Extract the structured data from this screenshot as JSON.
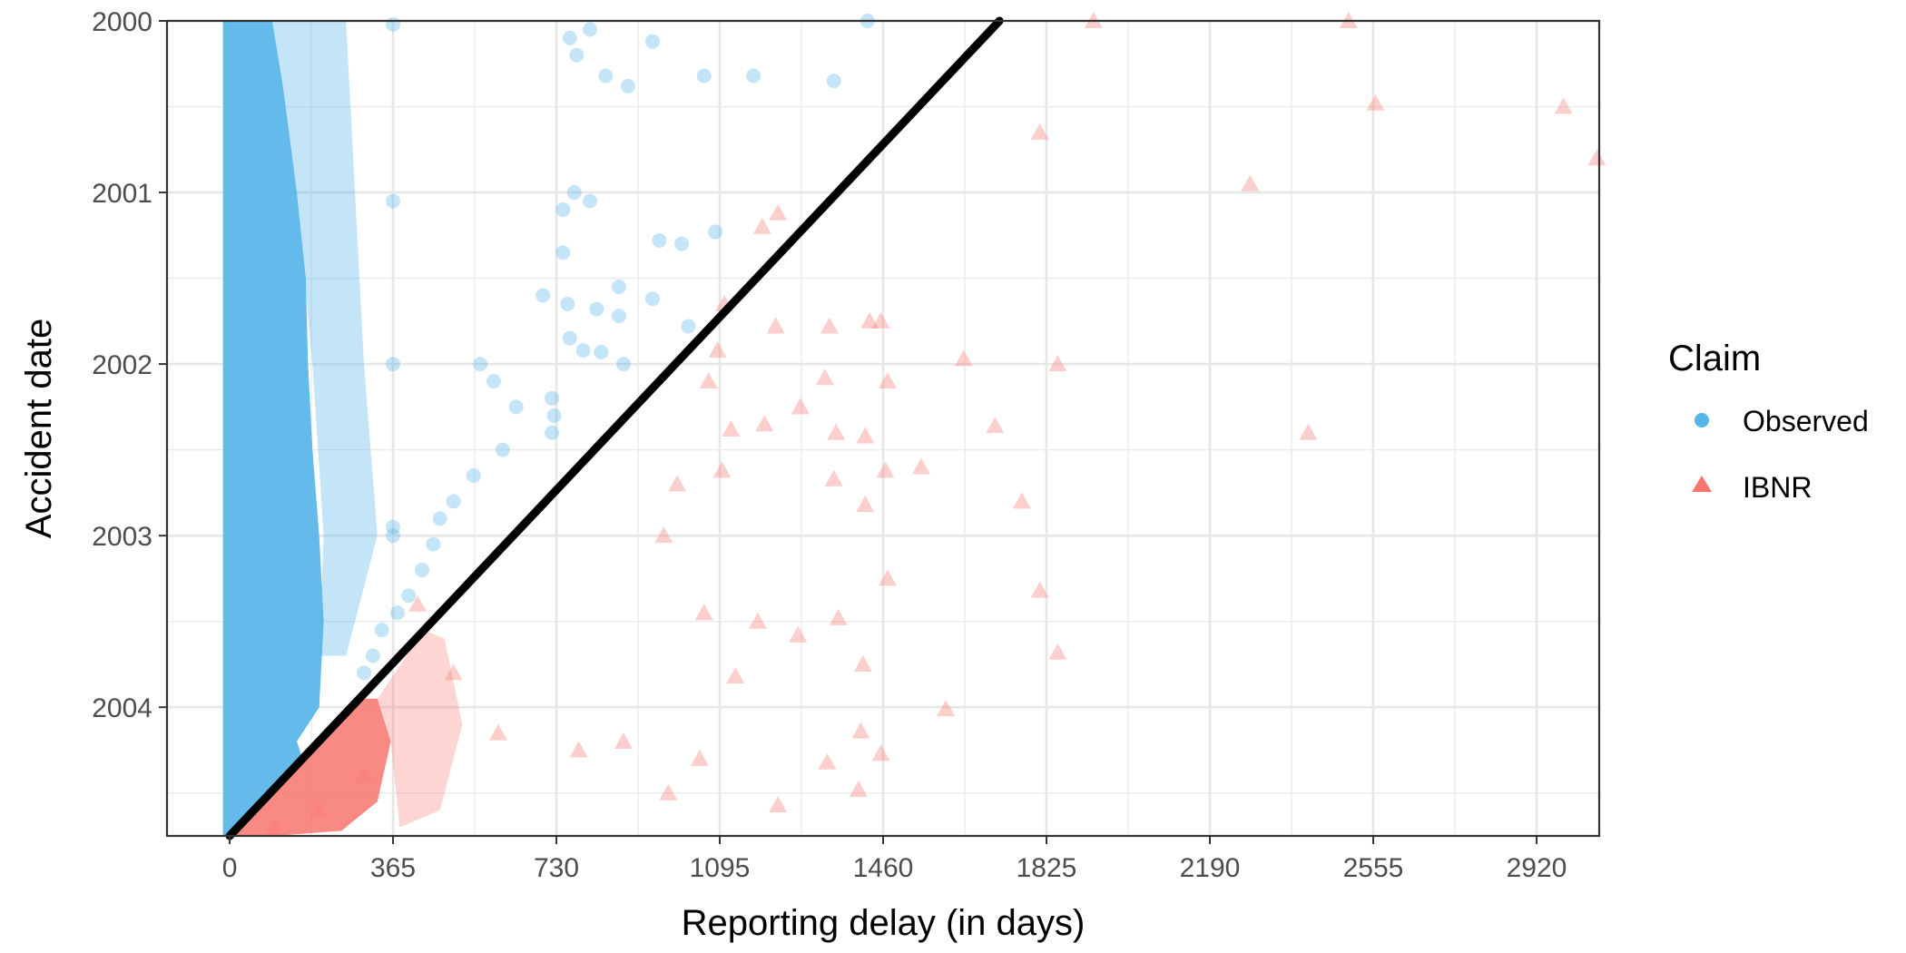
{
  "chart_data": {
    "type": "scatter",
    "title": "",
    "xlabel": "Reporting delay (in days)",
    "ylabel": "Accident date",
    "xlim": [
      -140,
      3060
    ],
    "ylim": [
      2000.0,
      2004.75
    ],
    "x_ticks": [
      0,
      365,
      730,
      1095,
      1460,
      1825,
      2190,
      2555,
      2920
    ],
    "y_ticks": [
      2000,
      2001,
      2002,
      2003,
      2004
    ],
    "y_reversed": true,
    "grid": true,
    "reference_line": {
      "x": [
        0,
        1720
      ],
      "y": [
        2004.75,
        2000.0
      ],
      "color": "#000000"
    },
    "legend": {
      "title": "Claim",
      "position": "right",
      "entries": [
        {
          "label": "Observed",
          "color": "#56B4E9",
          "shape": "circle"
        },
        {
          "label": "IBNR",
          "color": "#F8766D",
          "shape": "triangle"
        }
      ]
    },
    "series": [
      {
        "name": "Observed",
        "color": "#56B4E9",
        "shape": "circle",
        "points": [
          [
            1425,
            2000.0
          ],
          [
            1350,
            2000.35
          ],
          [
            1170,
            2000.32
          ],
          [
            1060,
            2000.32
          ],
          [
            945,
            2000.12
          ],
          [
            890,
            2000.38
          ],
          [
            840,
            2000.32
          ],
          [
            805,
            2000.05
          ],
          [
            775,
            2000.2
          ],
          [
            760,
            2000.1
          ],
          [
            1010,
            2001.3
          ],
          [
            1085,
            2001.23
          ],
          [
            960,
            2001.28
          ],
          [
            870,
            2001.55
          ],
          [
            805,
            2001.05
          ],
          [
            770,
            2001.0
          ],
          [
            745,
            2001.35
          ],
          [
            745,
            2001.1
          ],
          [
            820,
            2001.68
          ],
          [
            830,
            2001.93
          ],
          [
            790,
            2001.92
          ],
          [
            760,
            2001.85
          ],
          [
            755,
            2001.65
          ],
          [
            1025,
            2001.78
          ],
          [
            945,
            2001.62
          ],
          [
            880,
            2002.0
          ],
          [
            870,
            2001.72
          ],
          [
            700,
            2001.6
          ],
          [
            720,
            2002.2
          ],
          [
            725,
            2002.3
          ],
          [
            720,
            2002.4
          ],
          [
            640,
            2002.25
          ],
          [
            610,
            2002.5
          ],
          [
            590,
            2002.1
          ],
          [
            560,
            2002.0
          ],
          [
            545,
            2002.65
          ],
          [
            500,
            2002.8
          ],
          [
            470,
            2002.9
          ],
          [
            455,
            2003.05
          ],
          [
            430,
            2003.2
          ],
          [
            400,
            2003.35
          ],
          [
            375,
            2003.45
          ],
          [
            365,
            2002.0
          ],
          [
            365,
            2003.0
          ],
          [
            365,
            2002.95
          ],
          [
            365,
            2001.05
          ],
          [
            365,
            2000.02
          ],
          [
            340,
            2003.55
          ],
          [
            320,
            2003.7
          ],
          [
            300,
            2003.8
          ]
        ]
      },
      {
        "name": "IBNR",
        "color": "#F8766D",
        "shape": "triangle",
        "points": [
          [
            2500,
            2000.0
          ],
          [
            1930,
            2000.0
          ],
          [
            2560,
            2000.48
          ],
          [
            2980,
            2000.5
          ],
          [
            3055,
            2000.8
          ],
          [
            1810,
            2000.65
          ],
          [
            2280,
            2000.95
          ],
          [
            1190,
            2001.2
          ],
          [
            1225,
            2001.12
          ],
          [
            1105,
            2001.65
          ],
          [
            1455,
            2001.75
          ],
          [
            1430,
            2001.75
          ],
          [
            1340,
            2001.78
          ],
          [
            1220,
            2001.78
          ],
          [
            1090,
            2001.92
          ],
          [
            1640,
            2001.97
          ],
          [
            1850,
            2002.0
          ],
          [
            1470,
            2002.1
          ],
          [
            1330,
            2002.08
          ],
          [
            1275,
            2002.25
          ],
          [
            1195,
            2002.35
          ],
          [
            1120,
            2002.38
          ],
          [
            1070,
            2002.1
          ],
          [
            2410,
            2002.4
          ],
          [
            1710,
            2002.36
          ],
          [
            1545,
            2002.6
          ],
          [
            1465,
            2002.62
          ],
          [
            1355,
            2002.4
          ],
          [
            1420,
            2002.42
          ],
          [
            1100,
            2002.62
          ],
          [
            1770,
            2002.8
          ],
          [
            1420,
            2002.82
          ],
          [
            1350,
            2002.67
          ],
          [
            1000,
            2002.7
          ],
          [
            970,
            2003.0
          ],
          [
            1810,
            2003.32
          ],
          [
            1470,
            2003.25
          ],
          [
            1360,
            2003.48
          ],
          [
            1180,
            2003.5
          ],
          [
            1060,
            2003.45
          ],
          [
            1270,
            2003.58
          ],
          [
            1415,
            2003.75
          ],
          [
            1850,
            2003.68
          ],
          [
            1600,
            2004.01
          ],
          [
            1130,
            2003.82
          ],
          [
            1410,
            2004.14
          ],
          [
            1455,
            2004.27
          ],
          [
            1225,
            2004.57
          ],
          [
            1405,
            2004.48
          ],
          [
            1335,
            2004.32
          ],
          [
            1050,
            2004.3
          ],
          [
            980,
            2004.5
          ],
          [
            880,
            2004.2
          ],
          [
            780,
            2004.25
          ],
          [
            600,
            2004.15
          ],
          [
            500,
            2003.8
          ],
          [
            420,
            2003.4
          ],
          [
            300,
            2004.4
          ],
          [
            200,
            2004.6
          ],
          [
            100,
            2004.7
          ]
        ]
      }
    ]
  }
}
